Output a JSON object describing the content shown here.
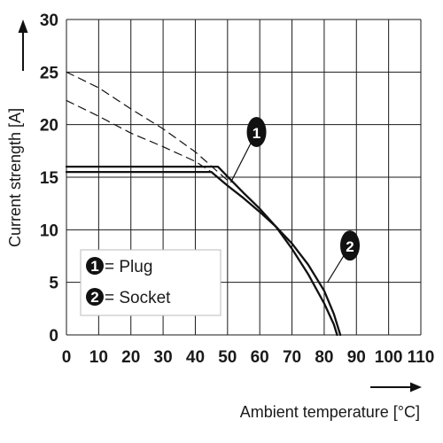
{
  "chart_data": {
    "type": "line",
    "xlabel": "Ambient temperature [°C]",
    "ylabel": "Current strength [A]",
    "xlim": [
      0,
      110
    ],
    "ylim": [
      0,
      30
    ],
    "x_ticks": [
      "0",
      "10",
      "20",
      "30",
      "40",
      "50",
      "60",
      "70",
      "80",
      "90",
      "100",
      "110"
    ],
    "y_ticks": [
      "0",
      "5",
      "10",
      "15",
      "20",
      "25",
      "30"
    ],
    "grid": true,
    "legend": {
      "placement": "lower-left",
      "entries": [
        {
          "marker": "1",
          "label": "= Plug"
        },
        {
          "marker": "2",
          "label": "= Socket"
        }
      ]
    },
    "series": [
      {
        "marker": "1",
        "style": "solid",
        "points": [
          [
            0,
            16
          ],
          [
            47,
            16
          ],
          [
            55,
            13.5
          ],
          [
            60,
            12
          ],
          [
            65,
            10.3
          ],
          [
            70,
            8.2
          ],
          [
            75,
            5.8
          ],
          [
            80,
            3
          ],
          [
            83,
            1
          ],
          [
            84,
            0
          ]
        ]
      },
      {
        "marker": "2",
        "style": "solid",
        "points": [
          [
            0,
            15.5
          ],
          [
            45,
            15.5
          ],
          [
            50,
            14.2
          ],
          [
            55,
            13
          ],
          [
            60,
            11.7
          ],
          [
            65,
            10.3
          ],
          [
            70,
            8.7
          ],
          [
            75,
            6.7
          ],
          [
            80,
            4.2
          ],
          [
            83,
            2
          ],
          [
            85,
            0
          ]
        ]
      },
      {
        "marker": "1",
        "style": "dashed",
        "points": [
          [
            0,
            25
          ],
          [
            10,
            23.5
          ],
          [
            20,
            21.5
          ],
          [
            30,
            19.6
          ],
          [
            40,
            17.4
          ],
          [
            50,
            14.7
          ]
        ]
      },
      {
        "marker": "2",
        "style": "dashed",
        "points": [
          [
            0,
            22.3
          ],
          [
            10,
            20.8
          ],
          [
            20,
            19.2
          ],
          [
            30,
            17.9
          ],
          [
            40,
            16.5
          ],
          [
            45,
            15.5
          ]
        ]
      }
    ],
    "callouts": [
      {
        "marker": "1",
        "label_at": [
          59,
          19.3
        ],
        "points_to": [
          51,
          14.5
        ]
      },
      {
        "marker": "2",
        "label_at": [
          88,
          8.5
        ],
        "points_to": [
          81,
          5
        ]
      }
    ]
  },
  "colors": {
    "grid": "#1a1a1a",
    "curve": "#111111",
    "marker_fill": "#111111",
    "legend_border": "#bbbbbb"
  }
}
